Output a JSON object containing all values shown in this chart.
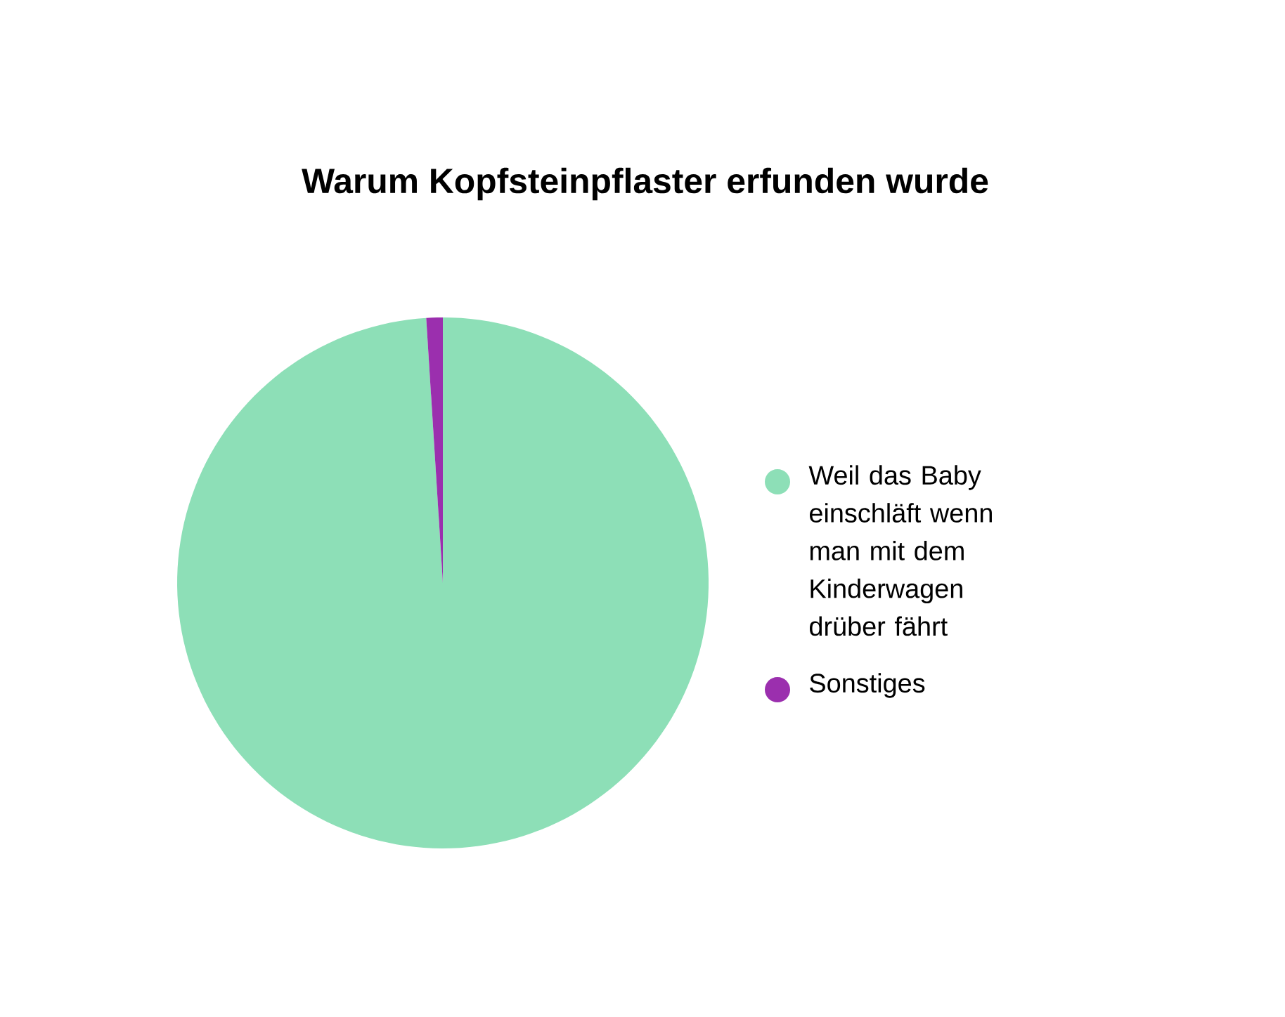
{
  "chart_data": {
    "type": "pie",
    "title": "Warum Kopfsteinpflaster erfunden wurde",
    "categories": [
      "Weil das Baby einschläft wenn man mit dem Kinderwagen drüber fährt",
      "Sonstiges"
    ],
    "values": [
      99,
      1
    ],
    "colors": [
      "#8ddfb7",
      "#9b2fae"
    ],
    "legend": "right"
  }
}
